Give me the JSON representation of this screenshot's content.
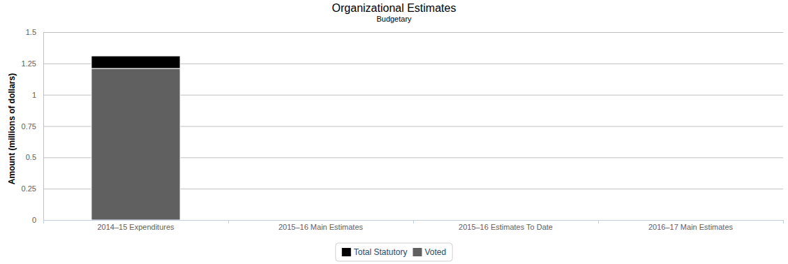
{
  "chart_data": {
    "type": "bar",
    "title": "Organizational Estimates",
    "subtitle": "Budgetary",
    "y_label": "Amount (millions of dollars)",
    "categories": [
      "2014–15 Expenditures",
      "2015–16 Main Estimates",
      "2015–16 Estimates To Date",
      "2016–17 Main Estimates"
    ],
    "series": [
      {
        "name": "Total Statutory",
        "color": "#000000",
        "values": [
          0.1,
          null,
          null,
          null
        ]
      },
      {
        "name": "Voted",
        "color": "#606060",
        "values": [
          1.21,
          null,
          null,
          null
        ]
      }
    ],
    "stacked": true,
    "ylim": [
      0,
      1.5
    ],
    "yticks": [
      0,
      0.25,
      0.5,
      0.75,
      1,
      1.25,
      1.5
    ],
    "grid": true,
    "legend": "bottom"
  }
}
